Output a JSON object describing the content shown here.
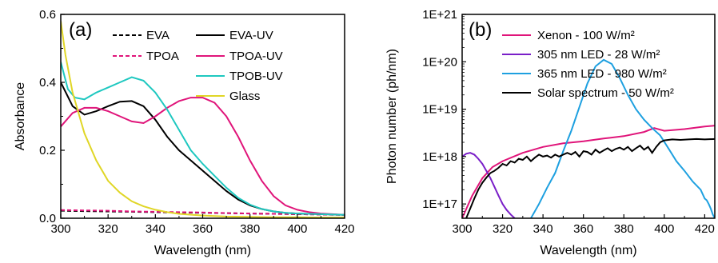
{
  "chart_data": [
    {
      "type": "line",
      "panel_label": "(a)",
      "xlabel": "Wavelength (nm)",
      "ylabel": "Absorbance",
      "xlim": [
        300,
        420
      ],
      "ylim": [
        0,
        0.6
      ],
      "xticks": [
        "300",
        "320",
        "340",
        "360",
        "380",
        "400",
        "420"
      ],
      "yticks": [
        "0.0",
        "0.2",
        "0.4",
        "0.6"
      ],
      "legend_placement": "top",
      "grid": false,
      "series": [
        {
          "name": "EVA",
          "color": "#000000",
          "dash": true,
          "x": [
            300,
            310,
            320,
            330,
            340,
            350,
            360,
            370,
            380,
            390,
            400,
            410,
            420
          ],
          "y": [
            0.022,
            0.021,
            0.02,
            0.019,
            0.018,
            0.017,
            0.016,
            0.015,
            0.014,
            0.013,
            0.012,
            0.011,
            0.01
          ]
        },
        {
          "name": "TPOA",
          "color": "#e0157a",
          "dash": true,
          "x": [
            300,
            310,
            320,
            330,
            340,
            350,
            360,
            370,
            380,
            390,
            400,
            410,
            420
          ],
          "y": [
            0.024,
            0.023,
            0.022,
            0.02,
            0.019,
            0.018,
            0.017,
            0.015,
            0.014,
            0.013,
            0.012,
            0.011,
            0.01
          ]
        },
        {
          "name": "EVA-UV",
          "color": "#000000",
          "dash": false,
          "x": [
            300,
            305,
            310,
            315,
            320,
            325,
            330,
            335,
            340,
            345,
            350,
            355,
            360,
            365,
            370,
            375,
            380,
            385,
            390,
            395,
            400,
            410,
            420
          ],
          "y": [
            0.4,
            0.33,
            0.305,
            0.315,
            0.33,
            0.343,
            0.345,
            0.33,
            0.29,
            0.24,
            0.2,
            0.17,
            0.14,
            0.11,
            0.08,
            0.055,
            0.038,
            0.027,
            0.02,
            0.016,
            0.014,
            0.012,
            0.01
          ]
        },
        {
          "name": "TPOA-UV",
          "color": "#e0157a",
          "dash": false,
          "x": [
            300,
            305,
            310,
            315,
            320,
            325,
            330,
            335,
            340,
            345,
            350,
            355,
            360,
            365,
            370,
            375,
            380,
            385,
            390,
            395,
            400,
            405,
            410,
            420
          ],
          "y": [
            0.27,
            0.31,
            0.325,
            0.325,
            0.315,
            0.3,
            0.285,
            0.28,
            0.3,
            0.325,
            0.345,
            0.355,
            0.355,
            0.34,
            0.3,
            0.24,
            0.17,
            0.11,
            0.065,
            0.038,
            0.025,
            0.018,
            0.014,
            0.01
          ]
        },
        {
          "name": "TPOB-UV",
          "color": "#1fc8c0",
          "dash": false,
          "x": [
            300,
            303,
            306,
            310,
            315,
            320,
            325,
            330,
            335,
            340,
            345,
            350,
            355,
            360,
            365,
            370,
            375,
            380,
            385,
            390,
            395,
            400,
            410,
            420
          ],
          "y": [
            0.46,
            0.38,
            0.355,
            0.35,
            0.37,
            0.385,
            0.4,
            0.415,
            0.405,
            0.37,
            0.32,
            0.26,
            0.2,
            0.16,
            0.125,
            0.09,
            0.06,
            0.04,
            0.027,
            0.02,
            0.016,
            0.014,
            0.012,
            0.01
          ]
        },
        {
          "name": "Glass",
          "color": "#e0d626",
          "dash": false,
          "x": [
            300,
            302,
            305,
            310,
            315,
            320,
            325,
            330,
            335,
            340,
            345,
            350,
            360,
            370,
            380,
            390,
            400,
            410,
            420
          ],
          "y": [
            0.58,
            0.48,
            0.37,
            0.25,
            0.17,
            0.11,
            0.075,
            0.05,
            0.035,
            0.025,
            0.018,
            0.013,
            0.008,
            0.005,
            0.004,
            0.003,
            0.003,
            0.002,
            0.002
          ]
        }
      ]
    },
    {
      "type": "line",
      "panel_label": "(b)",
      "xlabel": "Wavelength (nm)",
      "ylabel": "Photon number (ph/nm)",
      "xlim": [
        300,
        425
      ],
      "ylim": [
        5e+16,
        1e+21
      ],
      "yscale": "log",
      "xticks": [
        "300",
        "320",
        "340",
        "360",
        "380",
        "400",
        "420"
      ],
      "yticks": [
        "1E+17",
        "1E+18",
        "1E+19",
        "1E+20",
        "1E+21"
      ],
      "legend_placement": "top",
      "grid": false,
      "series": [
        {
          "name": "Xenon - 100 W/m²",
          "color": "#e0157a",
          "x": [
            300,
            305,
            310,
            315,
            320,
            330,
            340,
            350,
            360,
            370,
            380,
            390,
            395,
            400,
            410,
            420,
            425
          ],
          "y": [
            5e+16,
            1.5e+17,
            3.5e+17,
            6e+17,
            8e+17,
            1.2e+18,
            1.6e+18,
            1.9e+18,
            2.1e+18,
            2.4e+18,
            2.7e+18,
            3.3e+18,
            4e+18,
            3.5e+18,
            3.8e+18,
            4.3e+18,
            4.5e+18
          ]
        },
        {
          "name": "305 nm LED - 28 W/m²",
          "color": "#7a1fc8",
          "x": [
            300,
            302,
            304,
            306,
            308,
            310,
            312,
            314,
            316,
            318,
            320,
            322,
            324,
            326
          ],
          "y": [
            1e+18,
            1.15e+18,
            1.2e+18,
            1.1e+18,
            9e+17,
            7e+17,
            5e+17,
            3.5e+17,
            2.3e+17,
            1.5e+17,
            1e+17,
            7.5e+16,
            6e+16,
            5e+16
          ]
        },
        {
          "name": "365 nm LED - 980 W/m²",
          "color": "#1ea0e0",
          "x": [
            334,
            338,
            342,
            346,
            350,
            354,
            358,
            362,
            366,
            370,
            374,
            378,
            382,
            386,
            390,
            394,
            398,
            402,
            406,
            410,
            414,
            418,
            420,
            421,
            422,
            423,
            424,
            425
          ],
          "y": [
            5e+16,
            1e+17,
            2.2e+17,
            4.5e+17,
            1.3e+18,
            3.5e+18,
            1.1e+19,
            3.5e+19,
            8e+19,
            1.1e+20,
            9e+19,
            4.5e+19,
            2e+19,
            1e+19,
            6e+18,
            4e+18,
            2.8e+18,
            1.5e+18,
            8e+17,
            5e+17,
            3e+17,
            2e+17,
            1.3e+17,
            1.2e+17,
            1e+17,
            8e+16,
            6e+16,
            5e+16
          ]
        },
        {
          "name": "Solar spectrum - 50 W/m²",
          "color": "#000000",
          "x": [
            302,
            304,
            306,
            308,
            310,
            312,
            314,
            316,
            318,
            320,
            322,
            324,
            326,
            328,
            330,
            332,
            334,
            336,
            338,
            340,
            342,
            344,
            346,
            348,
            350,
            352,
            354,
            356,
            358,
            360,
            362,
            364,
            366,
            368,
            370,
            372,
            374,
            376,
            378,
            380,
            382,
            384,
            386,
            388,
            390,
            392,
            394,
            396,
            398,
            400,
            404,
            408,
            412,
            416,
            420,
            425
          ],
          "y": [
            5e+16,
            8e+16,
            1.3e+17,
            2e+17,
            2.8e+17,
            3.6e+17,
            4.5e+17,
            5e+17,
            5.8e+17,
            7e+17,
            6.5e+17,
            8e+17,
            7.5e+17,
            9e+17,
            8.5e+17,
            1e+18,
            8e+17,
            9.5e+17,
            1.1e+18,
            1e+18,
            1.05e+18,
            9.5e+17,
            1.1e+18,
            1e+18,
            1.1e+18,
            1.2e+18,
            1.1e+18,
            1.25e+18,
            1e+18,
            1.3e+18,
            1.25e+18,
            1.1e+18,
            1.4e+18,
            1.2e+18,
            1.35e+18,
            1.5e+18,
            1.3e+18,
            1.45e+18,
            1.55e+18,
            1.4e+18,
            1.6e+18,
            1.3e+18,
            1.5e+18,
            1.7e+18,
            1.4e+18,
            1.6e+18,
            1.2e+18,
            1.6e+18,
            2e+18,
            2.2e+18,
            2.3e+18,
            2.25e+18,
            2.3e+18,
            2.35e+18,
            2.3e+18,
            2.35e+18
          ]
        }
      ]
    }
  ]
}
